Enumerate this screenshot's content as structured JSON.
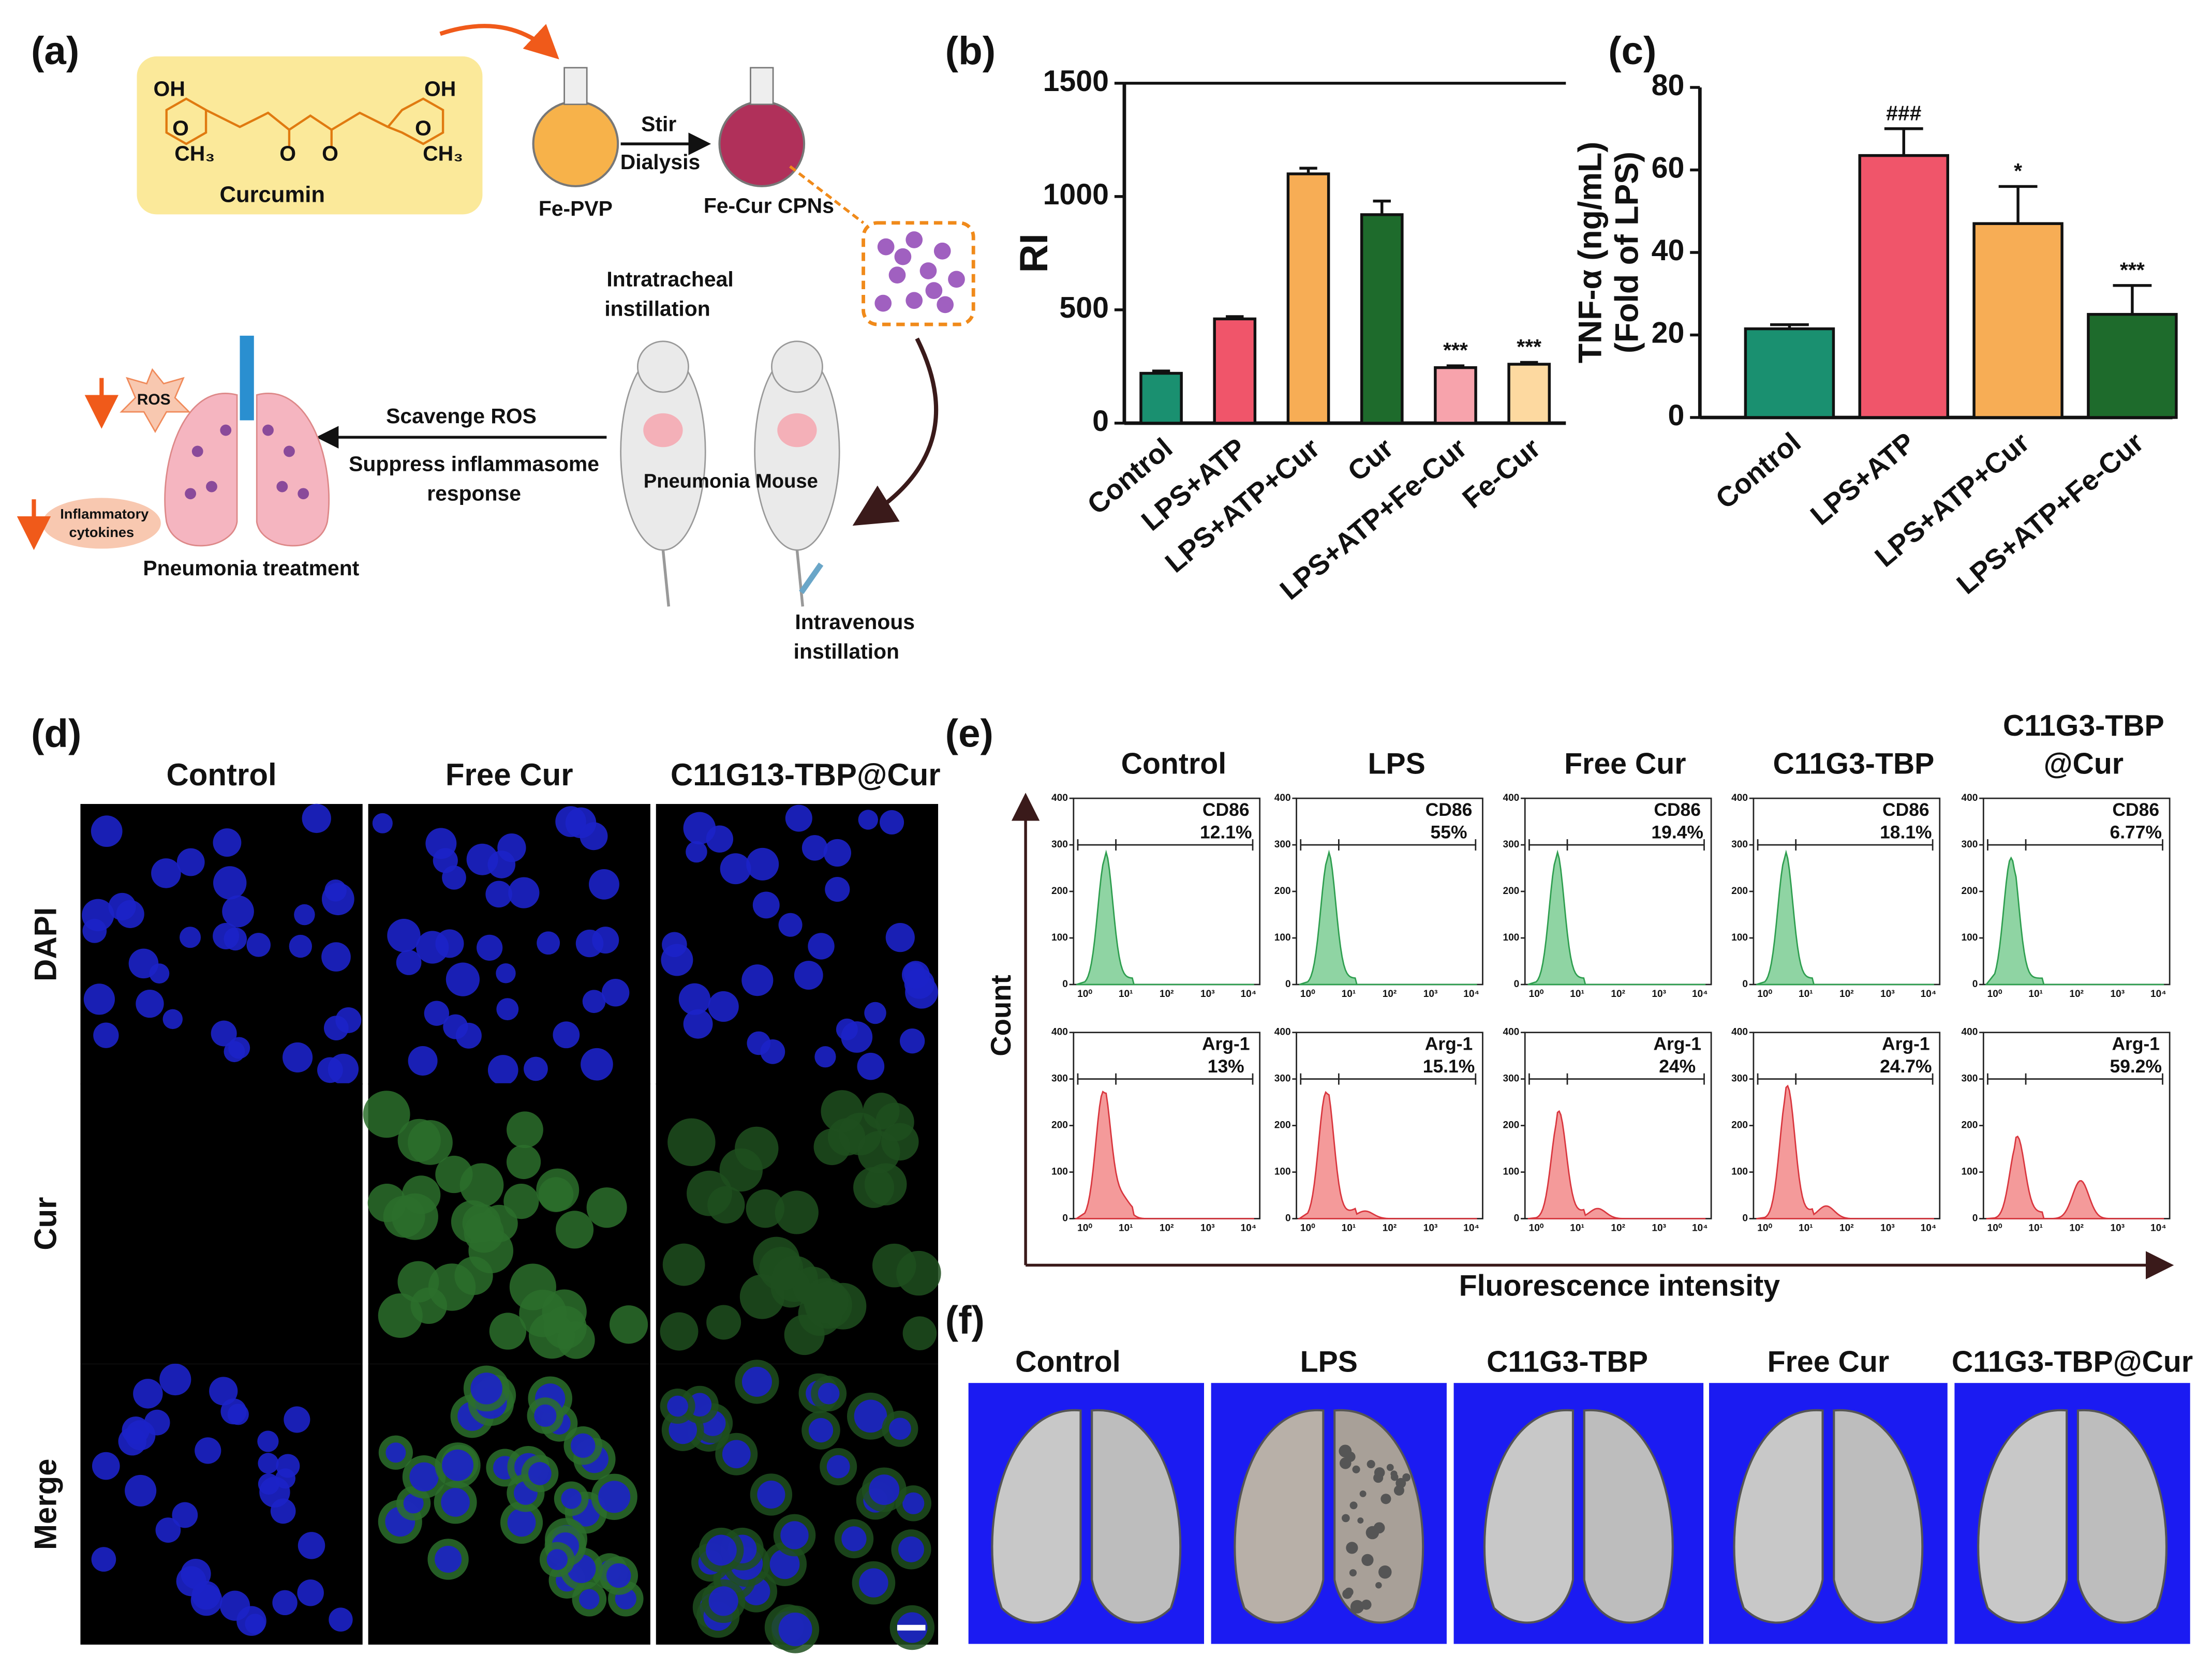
{
  "panel_labels": {
    "a": "(a)",
    "b": "(b)",
    "c": "(c)",
    "d": "(d)",
    "e": "(e)",
    "f": "(f)"
  },
  "scheme": {
    "oh": "OH",
    "o": "O",
    "ch3": "CH₃",
    "curcumin": "Curcumin",
    "fe_pvp": "Fe-PVP",
    "stir": "Stir",
    "dialysis": "Dialysis",
    "fe_cur_cpns": "Fe-Cur CPNs",
    "intratracheal": [
      "Intratracheal",
      "instillation"
    ],
    "mouse": "Pneumonia Mouse",
    "intravenous": [
      "Intravenous",
      "instillation"
    ],
    "scavenge": "Scavenge ROS",
    "suppress": [
      "Suppress inflammasome",
      "response"
    ],
    "ros": "ROS",
    "cytokines": [
      "Inflammatory",
      "cytokines"
    ],
    "treatment": "Pneumonia treatment"
  },
  "chart_data": [
    {
      "type": "bar",
      "ylabel": [
        "RI"
      ],
      "categories": [
        "Control",
        "LPS+ATP",
        "LPS+ATP+Cur",
        "Cur",
        "LPS+ATP+Fe-Cur",
        "Fe-Cur"
      ],
      "values": [
        220,
        460,
        1100,
        920,
        245,
        260
      ],
      "errors": [
        10,
        10,
        25,
        60,
        8,
        8
      ],
      "colors": [
        "#1a9070",
        "#f0556a",
        "#f7ad55",
        "#1e6b2c",
        "#f7a3ac",
        "#fdd9a0"
      ],
      "annotations": [
        {
          "category": "LPS+ATP+Fe-Cur",
          "text": "***"
        },
        {
          "category": "Fe-Cur",
          "text": "***"
        }
      ],
      "ylim": [
        0,
        1500
      ],
      "yticks": [
        0,
        500,
        1000,
        1500
      ],
      "frame_top": true
    },
    {
      "type": "bar",
      "ylabel": [
        "TNF-α (ng/mL)",
        "(Fold of LPS)"
      ],
      "categories": [
        "Control",
        "LPS+ATP",
        "LPS+ATP+Cur",
        "LPS+ATP+Fe-Cur"
      ],
      "values": [
        21.5,
        63.5,
        47,
        25
      ],
      "errors": [
        1,
        6.5,
        9,
        7
      ],
      "colors": [
        "#1a9070",
        "#f0556a",
        "#f7ad55",
        "#1e6b2c"
      ],
      "annotations": [
        {
          "category": "LPS+ATP",
          "text": "###"
        },
        {
          "category": "LPS+ATP+Cur",
          "text": "*"
        },
        {
          "category": "LPS+ATP+Fe-Cur",
          "text": "***"
        }
      ],
      "ylim": [
        0,
        80
      ],
      "yticks": [
        0,
        20,
        40,
        60,
        80
      ],
      "frame_top": false
    }
  ],
  "microscopy": {
    "columns": [
      "Control",
      "Free Cur",
      "C11G13-TBP@Cur"
    ],
    "rows": [
      "DAPI",
      "Cur",
      "Merge"
    ]
  },
  "flow": {
    "columns": [
      [
        "Control"
      ],
      [
        "LPS"
      ],
      [
        "Free Cur"
      ],
      [
        "C11G3-TBP"
      ],
      [
        "C11G3-TBP",
        "@Cur"
      ]
    ],
    "markers": [
      "CD86",
      "Arg-1"
    ],
    "percentages": [
      [
        "12.1%",
        "55%",
        "19.4%",
        "18.1%",
        "6.77%"
      ],
      [
        "13%",
        "15.1%",
        "24%",
        "24.7%",
        "59.2%"
      ]
    ],
    "yticks": [
      0,
      100,
      200,
      300,
      400
    ],
    "xticks": [
      "10⁰",
      "10¹",
      "10²",
      "10³",
      "10⁴"
    ],
    "ylabel": "Count",
    "xlabel": "Fluorescence intensity"
  },
  "lungs": {
    "labels": [
      "Control",
      "LPS",
      "C11G3-TBP",
      "Free Cur",
      "C11G3-TBP@Cur"
    ]
  }
}
